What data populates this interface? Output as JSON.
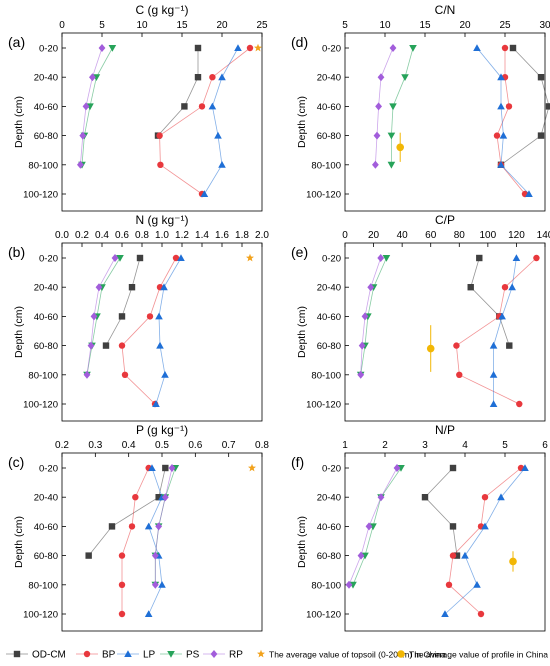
{
  "shared": {
    "ylabel": "Depth (cm)",
    "depth_categories": [
      "0-20",
      "20-40",
      "40-60",
      "60-80",
      "80-100",
      "100-120"
    ]
  },
  "legend": [
    {
      "name": "OD-CM",
      "color": "#404040",
      "marker": "square"
    },
    {
      "name": "BP",
      "color": "#e8383d",
      "marker": "circle"
    },
    {
      "name": "LP",
      "color": "#1f6fd6",
      "marker": "triangle"
    },
    {
      "name": "PS",
      "color": "#27a35a",
      "marker": "triangle-down"
    },
    {
      "name": "RP",
      "color": "#a25ddb",
      "marker": "diamond"
    },
    {
      "name": "The average value of topsoil (0-20cm) in China",
      "color": "#f2a21c",
      "marker": "star"
    },
    {
      "name": "The average value of profile in China",
      "color": "#f2b705",
      "marker": "dot"
    }
  ],
  "chart_data": [
    {
      "panel": "(a)",
      "type": "line",
      "title": "C (g kg⁻¹)",
      "xlim": [
        0,
        25
      ],
      "xticks": [
        0,
        5,
        10,
        15,
        20,
        25
      ],
      "categories": [
        "0-20",
        "20-40",
        "40-60",
        "60-80",
        "80-100",
        "100-120"
      ],
      "series": [
        {
          "name": "OD-CM",
          "values": [
            17.0,
            17.0,
            15.3,
            12.0,
            null,
            null
          ]
        },
        {
          "name": "BP",
          "values": [
            23.5,
            18.8,
            17.5,
            12.2,
            12.3,
            17.5
          ]
        },
        {
          "name": "LP",
          "values": [
            22.0,
            20.0,
            18.8,
            19.5,
            20.0,
            17.8
          ]
        },
        {
          "name": "PS",
          "values": [
            6.3,
            4.3,
            3.5,
            2.8,
            2.5,
            null
          ]
        },
        {
          "name": "RP",
          "values": [
            5.0,
            3.8,
            3.0,
            2.6,
            2.3,
            null
          ]
        }
      ],
      "topsoil_avg": {
        "value": 24.5
      },
      "profile_avg": null
    },
    {
      "panel": "(d)",
      "type": "line",
      "title": "C/N",
      "xlim": [
        5,
        30
      ],
      "xticks": [
        5,
        10,
        15,
        20,
        25,
        30
      ],
      "categories": [
        "0-20",
        "20-40",
        "40-60",
        "60-80",
        "80-100",
        "100-120"
      ],
      "series": [
        {
          "name": "OD-CM",
          "values": [
            26.0,
            29.5,
            30.5,
            29.5,
            24.5,
            null
          ]
        },
        {
          "name": "BP",
          "values": [
            25.0,
            25.0,
            25.5,
            24.0,
            24.5,
            27.5
          ]
        },
        {
          "name": "LP",
          "values": [
            21.5,
            24.5,
            24.5,
            24.8,
            24.5,
            28.0
          ]
        },
        {
          "name": "PS",
          "values": [
            13.5,
            12.5,
            11.0,
            10.8,
            10.8,
            null
          ]
        },
        {
          "name": "RP",
          "values": [
            11.0,
            9.5,
            9.2,
            9.0,
            8.8,
            null
          ]
        }
      ],
      "topsoil_avg": null,
      "profile_avg": {
        "value": 11.9,
        "depth_index": 3.4,
        "error": 0.5
      }
    },
    {
      "panel": "(b)",
      "type": "line",
      "title": "N (g kg⁻¹)",
      "xlim": [
        0.0,
        2.0
      ],
      "xticks": [
        0.0,
        0.2,
        0.4,
        0.6,
        0.8,
        1.0,
        1.2,
        1.4,
        1.6,
        1.8,
        2.0
      ],
      "categories": [
        "0-20",
        "20-40",
        "40-60",
        "60-80",
        "80-100",
        "100-120"
      ],
      "series": [
        {
          "name": "OD-CM",
          "values": [
            0.78,
            0.7,
            0.6,
            0.44,
            null,
            null
          ]
        },
        {
          "name": "BP",
          "values": [
            1.14,
            0.98,
            0.88,
            0.6,
            0.63,
            0.93
          ]
        },
        {
          "name": "LP",
          "values": [
            1.19,
            1.02,
            0.97,
            0.98,
            1.03,
            0.94
          ]
        },
        {
          "name": "PS",
          "values": [
            0.58,
            0.4,
            0.35,
            0.3,
            0.25,
            null
          ]
        },
        {
          "name": "RP",
          "values": [
            0.53,
            0.37,
            0.32,
            0.29,
            0.25,
            null
          ]
        }
      ],
      "topsoil_avg": {
        "value": 1.88
      },
      "profile_avg": null
    },
    {
      "panel": "(e)",
      "type": "line",
      "title": "C/P",
      "xlim": [
        0,
        140
      ],
      "xticks": [
        0,
        20,
        40,
        60,
        80,
        100,
        120,
        140
      ],
      "categories": [
        "0-20",
        "20-40",
        "40-60",
        "60-80",
        "80-100",
        "100-120"
      ],
      "series": [
        {
          "name": "OD-CM",
          "values": [
            94,
            88,
            108,
            115,
            null,
            null
          ]
        },
        {
          "name": "BP",
          "values": [
            134,
            112,
            108,
            78,
            80,
            122
          ]
        },
        {
          "name": "LP",
          "values": [
            120,
            117,
            110,
            104,
            104,
            104
          ]
        },
        {
          "name": "PS",
          "values": [
            29,
            20,
            16,
            14,
            11,
            null
          ]
        },
        {
          "name": "RP",
          "values": [
            25,
            18,
            14,
            12,
            11,
            null
          ]
        }
      ],
      "topsoil_avg": null,
      "profile_avg": {
        "value": 60,
        "depth_index": 3.1,
        "error": 0.8
      }
    },
    {
      "panel": "(c)",
      "type": "line",
      "title": "P (g kg⁻¹)",
      "xlim": [
        0.2,
        0.8
      ],
      "xticks": [
        0.2,
        0.3,
        0.4,
        0.5,
        0.6,
        0.7,
        0.8
      ],
      "categories": [
        "0-20",
        "20-40",
        "40-60",
        "60-80",
        "80-100",
        "100-120"
      ],
      "series": [
        {
          "name": "OD-CM",
          "values": [
            0.51,
            0.49,
            0.35,
            0.28,
            null,
            null
          ]
        },
        {
          "name": "BP",
          "values": [
            0.46,
            0.42,
            0.41,
            0.38,
            0.38,
            0.38
          ]
        },
        {
          "name": "LP",
          "values": [
            0.47,
            0.5,
            0.46,
            0.49,
            0.5,
            0.46
          ]
        },
        {
          "name": "PS",
          "values": [
            0.54,
            0.51,
            0.49,
            0.48,
            0.48,
            null
          ]
        },
        {
          "name": "RP",
          "values": [
            0.53,
            0.51,
            0.49,
            0.48,
            0.48,
            null
          ]
        }
      ],
      "topsoil_avg": {
        "value": 0.77
      },
      "profile_avg": null
    },
    {
      "panel": "(f)",
      "type": "line",
      "title": "N/P",
      "xlim": [
        1,
        6
      ],
      "xticks": [
        1,
        2,
        3,
        4,
        5,
        6
      ],
      "categories": [
        "0-20",
        "20-40",
        "40-60",
        "60-80",
        "80-100",
        "100-120"
      ],
      "series": [
        {
          "name": "OD-CM",
          "values": [
            3.7,
            3.0,
            3.7,
            3.8,
            null,
            null
          ]
        },
        {
          "name": "BP",
          "values": [
            5.4,
            4.5,
            4.4,
            3.7,
            3.6,
            4.4
          ]
        },
        {
          "name": "LP",
          "values": [
            5.5,
            4.9,
            4.5,
            4.0,
            4.3,
            3.5
          ]
        },
        {
          "name": "PS",
          "values": [
            2.4,
            1.9,
            1.7,
            1.5,
            1.2,
            null
          ]
        },
        {
          "name": "RP",
          "values": [
            2.3,
            1.9,
            1.6,
            1.4,
            1.1,
            null
          ]
        }
      ],
      "topsoil_avg": null,
      "profile_avg": {
        "value": 5.2,
        "depth_index": 3.2,
        "error": 0.35
      }
    }
  ]
}
